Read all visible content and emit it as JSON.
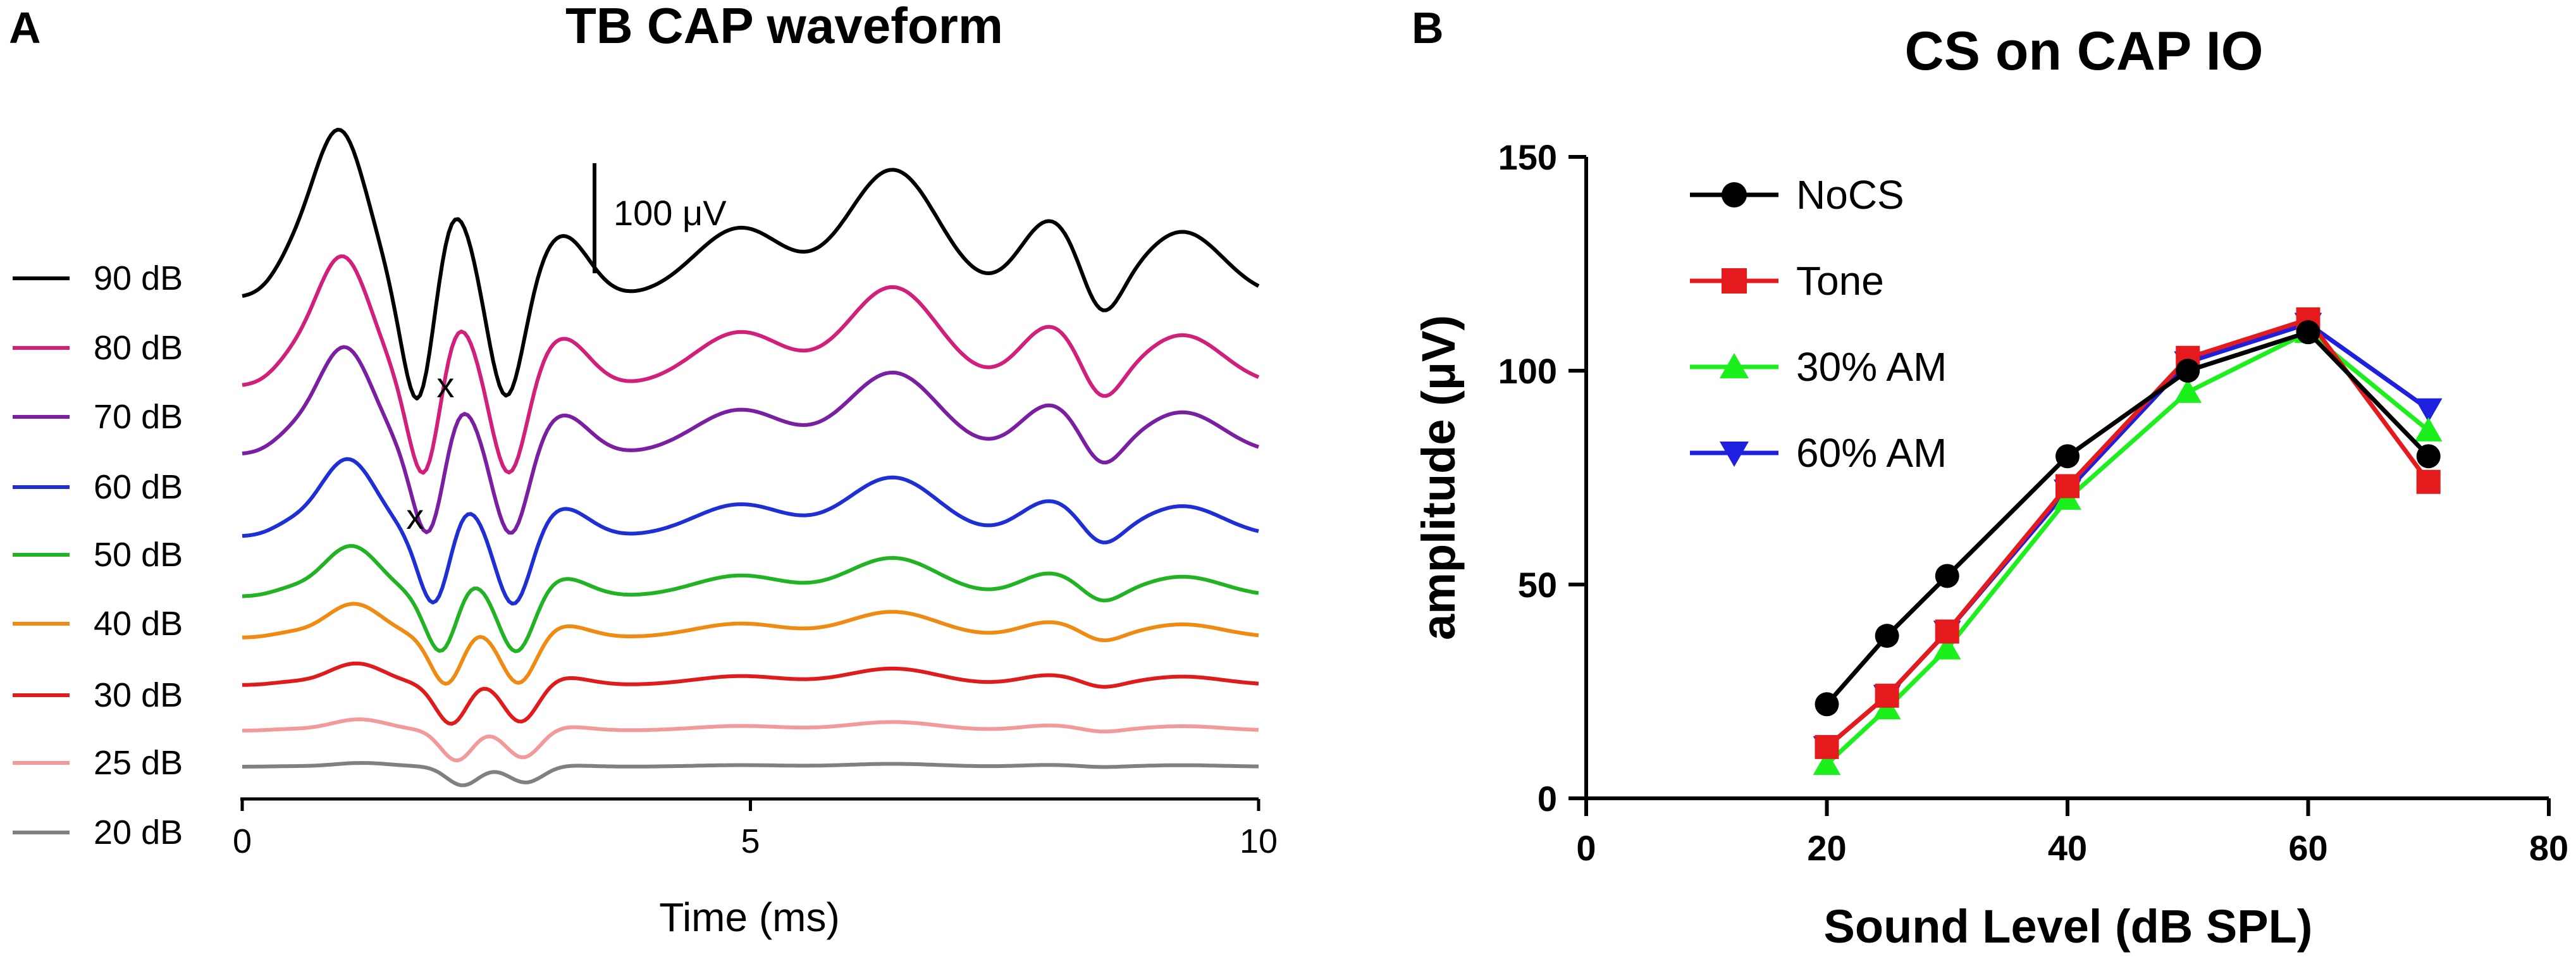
{
  "panels": {
    "a": {
      "letter": "A"
    },
    "b": {
      "letter": "B"
    }
  },
  "chart_data": [
    {
      "type": "line",
      "title": "TB CAP waveform",
      "xlabel": "Time (ms)",
      "ylabel": "",
      "xlim": [
        0,
        10
      ],
      "xticks": [
        "0",
        "5",
        "10"
      ],
      "scale_bar": {
        "label": "100 μV",
        "value_uv": 100
      },
      "markers": [
        {
          "symbol": "x",
          "trace": "70 dB",
          "time_ms": 2.0
        },
        {
          "symbol": "x",
          "trace": "60 dB",
          "time_ms": 1.7
        }
      ],
      "series": [
        {
          "name": "90 dB",
          "color": "#000000",
          "amp": 1.0
        },
        {
          "name": "80 dB",
          "color": "#d21f7a",
          "amp": 0.88
        },
        {
          "name": "70 dB",
          "color": "#7b1fa2",
          "amp": 0.8
        },
        {
          "name": "60 dB",
          "color": "#1f2fd6",
          "amp": 0.68
        },
        {
          "name": "50 dB",
          "color": "#22b324",
          "amp": 0.55
        },
        {
          "name": "40 dB",
          "color": "#ef8a13",
          "amp": 0.45
        },
        {
          "name": "30 dB",
          "color": "#e01b1b",
          "amp": 0.36
        },
        {
          "name": "25 dB",
          "color": "#f29a9a",
          "amp": 0.26
        },
        {
          "name": "20 dB",
          "color": "#808080",
          "amp": 0.15
        }
      ]
    },
    {
      "type": "line",
      "title": "CS on CAP IO",
      "xlabel": "Sound Level (dB SPL)",
      "ylabel": "amplitude (μV)",
      "xlim": [
        0,
        80
      ],
      "ylim": [
        0,
        150
      ],
      "xticks": [
        0,
        20,
        40,
        60,
        80
      ],
      "yticks": [
        0,
        50,
        100,
        150
      ],
      "x": [
        20,
        25,
        30,
        40,
        50,
        60,
        70
      ],
      "series": [
        {
          "name": "NoCS",
          "color": "#000000",
          "marker": "circle",
          "values": [
            22,
            38,
            52,
            80,
            100,
            109,
            80
          ]
        },
        {
          "name": "Tone",
          "color": "#e41a1c",
          "marker": "square",
          "values": [
            12,
            24,
            39,
            73,
            103,
            112,
            74
          ]
        },
        {
          "name": "30% AM",
          "color": "#1cf01c",
          "marker": "triangle-up",
          "values": [
            8,
            21,
            35,
            70,
            95,
            109,
            86
          ]
        },
        {
          "name": "60% AM",
          "color": "#1f1fe0",
          "marker": "triangle-down",
          "values": [
            12,
            24,
            39,
            72,
            102,
            111,
            91
          ]
        }
      ]
    }
  ]
}
